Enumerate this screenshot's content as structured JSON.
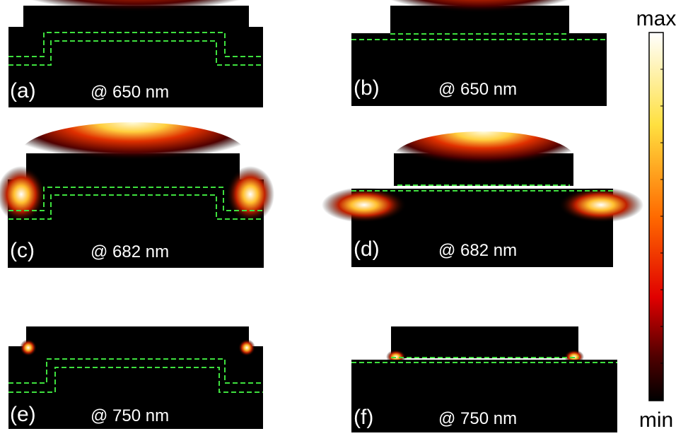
{
  "panels": [
    {
      "label": "(a)",
      "caption": "@ 650 nm"
    },
    {
      "label": "(b)",
      "caption": "@ 650 nm"
    },
    {
      "label": "(c)",
      "caption": "@ 682 nm"
    },
    {
      "label": "(d)",
      "caption": "@ 682 nm"
    },
    {
      "label": "(e)",
      "caption": "@ 750 nm"
    },
    {
      "label": "(f)",
      "caption": "@ 750 nm"
    }
  ],
  "colorbar": {
    "max": "max",
    "min": "min"
  }
}
